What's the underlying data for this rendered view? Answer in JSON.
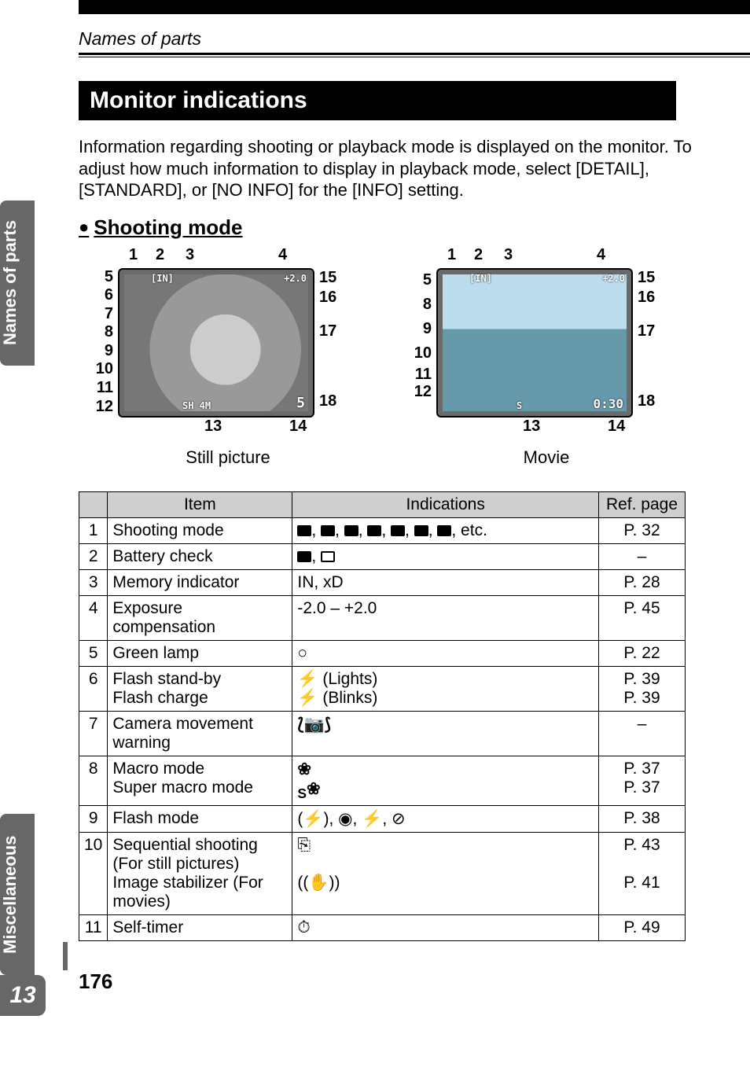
{
  "header": {
    "breadcrumb": "Names of parts"
  },
  "tabs": {
    "side1": "Names of parts",
    "side2": "Miscellaneous",
    "chapter": "13"
  },
  "section": {
    "title": "Monitor indications",
    "intro": "Information regarding shooting or playback mode is displayed on the monitor. To adjust how much information to display in playback mode, select [DETAIL], [STANDARD], or [NO INFO] for the [INFO] setting.",
    "subheading": "Shooting mode"
  },
  "diagrams": {
    "still": {
      "top": [
        "1",
        "2",
        "3",
        "4"
      ],
      "left": [
        "5",
        "6",
        "7",
        "8",
        "9",
        "10",
        "11",
        "12"
      ],
      "right": [
        "15",
        "16",
        "17",
        "18"
      ],
      "bottom": [
        "13",
        "14"
      ],
      "caption": "Still picture",
      "overlay": {
        "tl": "[IN]",
        "tr": "+2.0",
        "bl": "SH 4M",
        "br": "5"
      }
    },
    "movie": {
      "top": [
        "1",
        "2",
        "3",
        "4"
      ],
      "left": [
        "5",
        "8",
        "9",
        "10",
        "11",
        "12"
      ],
      "right": [
        "15",
        "16",
        "17",
        "18"
      ],
      "bottom": [
        "13",
        "14"
      ],
      "caption": "Movie",
      "overlay": {
        "tl": "[IN]",
        "tr": "+2.0",
        "bl": "S",
        "br": "0:30"
      }
    }
  },
  "table": {
    "headers": {
      "item": "Item",
      "ind": "Indications",
      "ref": "Ref. page"
    },
    "rows": [
      {
        "n": "1",
        "item": "Shooting mode",
        "ind_text": ", etc.",
        "ind_icons": "modes",
        "ref": "P. 32"
      },
      {
        "n": "2",
        "item": "Battery check",
        "ind_icons": "battery",
        "ref": "–"
      },
      {
        "n": "3",
        "item": "Memory indicator",
        "ind_text": "IN, xD",
        "ref": "P. 28"
      },
      {
        "n": "4",
        "item": "Exposure compensation",
        "ind_text": "-2.0 – +2.0",
        "ref": "P. 45"
      },
      {
        "n": "5",
        "item": "Green lamp",
        "ind_text": "○",
        "ref": "P. 22"
      },
      {
        "n": "6",
        "item": "Flash stand-by\nFlash charge",
        "ind_text": "⚡ (Lights)\n⚡ (Blinks)",
        "ref": "P. 39\nP. 39"
      },
      {
        "n": "7",
        "item": "Camera movement warning",
        "ind_icons": "camera-shake",
        "ref": "–"
      },
      {
        "n": "8",
        "item": "Macro mode\nSuper macro mode",
        "ind_icons": "macro",
        "ref": "P. 37\nP. 37"
      },
      {
        "n": "9",
        "item": "Flash mode",
        "ind_icons": "flash-modes",
        "ref": "P. 38"
      },
      {
        "n": "10",
        "item": "Sequential shooting (For still pictures)\nImage stabilizer (For movies)",
        "ind_icons": "seq-stab",
        "ref": "P. 43\n\nP. 41"
      },
      {
        "n": "11",
        "item": "Self-timer",
        "ind_icons": "timer",
        "ref": "P. 49"
      }
    ]
  },
  "page_number": "176"
}
